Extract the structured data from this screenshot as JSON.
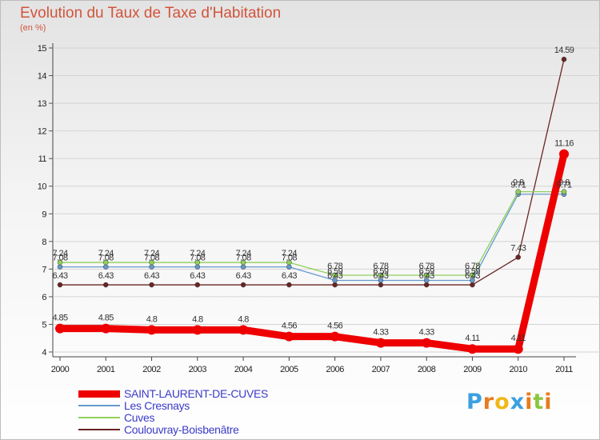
{
  "title": "Evolution du Taux de Taxe d'Habitation",
  "subtitle": "(en %)",
  "logo": {
    "letters": [
      "P",
      "r",
      "o",
      "x",
      "i",
      "t",
      "i"
    ],
    "colors": [
      "#3aa0e0",
      "#e87b1e",
      "#f0b81a",
      "#3aa0e0",
      "#e87b1e",
      "#8cc63f",
      "#e87b1e"
    ]
  },
  "chart_data": {
    "type": "line",
    "title": "Evolution du Taux de Taxe d'Habitation",
    "ylabel": "(en %)",
    "ylim": [
      4,
      15
    ],
    "yticks": [
      "4",
      "5",
      "6",
      "7",
      "8",
      "9",
      "10",
      "11",
      "12",
      "13",
      "14",
      "15"
    ],
    "categories": [
      "2000",
      "2001",
      "2002",
      "2003",
      "2004",
      "2005",
      "2006",
      "2007",
      "2008",
      "2009",
      "2010",
      "2011"
    ],
    "series": [
      {
        "name": "SAINT-LAURENT-DE-CUVES",
        "color": "#ee0000",
        "values": [
          4.85,
          4.85,
          4.8,
          4.8,
          4.8,
          4.56,
          4.56,
          4.33,
          4.33,
          4.11,
          4.11,
          11.16
        ],
        "labels": [
          "4.85",
          "4.85",
          "4.8",
          "4.8",
          "4.8",
          "4.56",
          "4.56",
          "4.33",
          "4.33",
          "4.11",
          "4.11",
          "11.16"
        ]
      },
      {
        "name": "Les Cresnays",
        "color": "#6699cc",
        "values": [
          7.08,
          7.08,
          7.08,
          7.08,
          7.08,
          7.08,
          6.59,
          6.59,
          6.59,
          6.59,
          9.71,
          9.71
        ],
        "labels": [
          "7.08",
          "7.08",
          "7.08",
          "7.08",
          "7.08",
          "7.08",
          "6.59",
          "6.59",
          "6.59",
          "6.59",
          "9.71",
          "9.71"
        ]
      },
      {
        "name": "Cuves",
        "color": "#8fd15a",
        "values": [
          7.24,
          7.24,
          7.24,
          7.24,
          7.24,
          7.24,
          6.78,
          6.78,
          6.78,
          6.78,
          9.8,
          9.8
        ],
        "labels": [
          "7.24",
          "7.24",
          "7.24",
          "7.24",
          "7.24",
          "7.24",
          "6.78",
          "6.78",
          "6.78",
          "6.78",
          "9.8",
          "9.8"
        ]
      },
      {
        "name": "Coulouvray-Boisbenâtre",
        "color": "#6b2424",
        "values": [
          6.43,
          6.43,
          6.43,
          6.43,
          6.43,
          6.43,
          6.43,
          6.43,
          6.43,
          6.43,
          7.43,
          14.59
        ],
        "labels": [
          "6.43",
          "6.43",
          "6.43",
          "6.43",
          "6.43",
          "6.43",
          "6.43",
          "6.43",
          "6.43",
          "6.43",
          "7.43",
          "14.59"
        ]
      }
    ]
  }
}
